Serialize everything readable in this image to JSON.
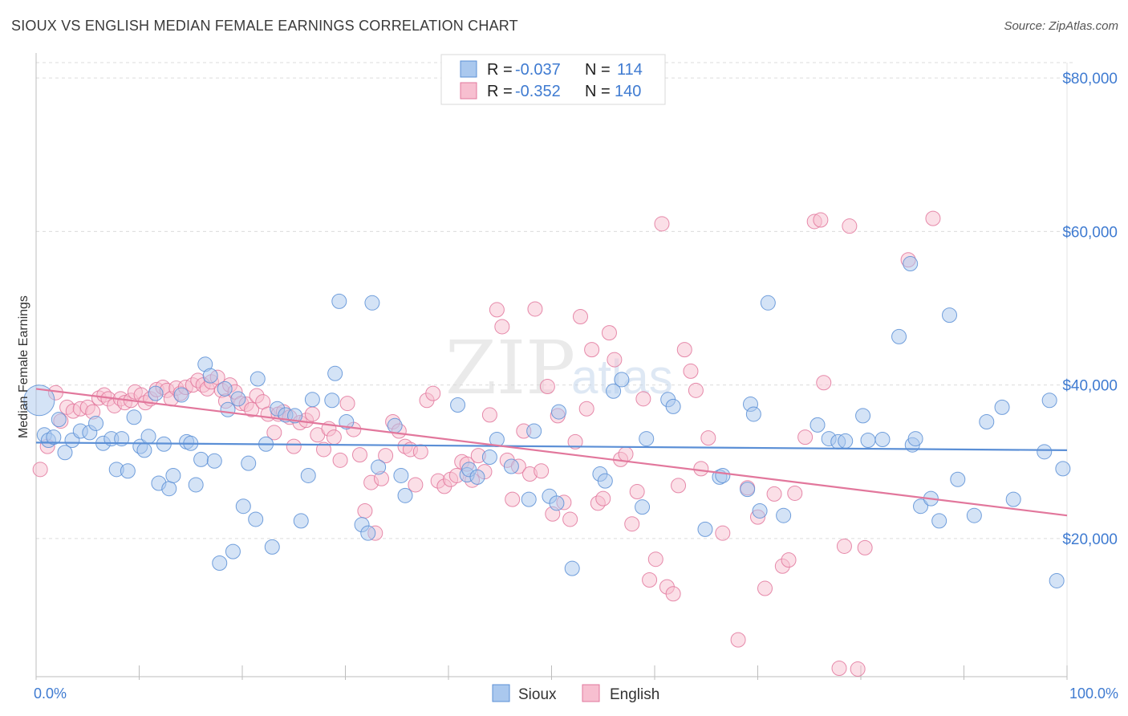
{
  "header": {
    "title": "SIOUX VS ENGLISH MEDIAN FEMALE EARNINGS CORRELATION CHART",
    "source": "Source: ZipAtlas.com"
  },
  "watermark": {
    "zip": "ZIP",
    "atlas": "atlas"
  },
  "legend_top": {
    "rows": [
      {
        "r_label": "R = ",
        "r_value": "-0.037",
        "n_label": "N = ",
        "n_value": "114",
        "color": "#aac8ee",
        "stroke": "#5b8fd6"
      },
      {
        "r_label": "R = ",
        "r_value": "-0.352",
        "n_label": "N = ",
        "n_value": "140",
        "color": "#f7bfd0",
        "stroke": "#e2779c"
      }
    ]
  },
  "legend_bottom": {
    "items": [
      {
        "label": "Sioux",
        "color": "#aac8ee"
      },
      {
        "label": "English",
        "color": "#f7bfd0"
      }
    ]
  },
  "chart_data": {
    "type": "scatter",
    "title": "SIOUX VS ENGLISH MEDIAN FEMALE EARNINGS CORRELATION CHART",
    "xlabel": "",
    "ylabel": "Median Female Earnings",
    "xlim": [
      0,
      100
    ],
    "ylim": [
      2000,
      82000
    ],
    "x_tick_labels": [
      "0.0%",
      "100.0%"
    ],
    "y_ticks": [
      20000,
      40000,
      60000,
      80000
    ],
    "y_tick_labels": [
      "$20,000",
      "$40,000",
      "$60,000",
      "$80,000"
    ],
    "grid": "horizontal dashed",
    "legend_position": "top-center",
    "series": [
      {
        "name": "Sioux",
        "color": "#5b8fd6",
        "fill": "#aac8ee",
        "trend": {
          "x": [
            0,
            100
          ],
          "y": [
            32500,
            31500
          ]
        },
        "points": [
          [
            0.3,
            38000
          ],
          [
            0.8,
            33500
          ],
          [
            1.2,
            32800
          ],
          [
            1.7,
            33200
          ],
          [
            2.2,
            35500
          ],
          [
            2.8,
            31200
          ],
          [
            3.5,
            32800
          ],
          [
            4.3,
            34000
          ],
          [
            5.2,
            33800
          ],
          [
            5.8,
            35000
          ],
          [
            6.5,
            32400
          ],
          [
            7.3,
            33000
          ],
          [
            7.8,
            29000
          ],
          [
            8.3,
            33000
          ],
          [
            8.9,
            28800
          ],
          [
            9.5,
            35800
          ],
          [
            10.1,
            32000
          ],
          [
            10.5,
            31500
          ],
          [
            10.9,
            33300
          ],
          [
            11.6,
            38900
          ],
          [
            11.9,
            27200
          ],
          [
            12.4,
            32300
          ],
          [
            12.9,
            26500
          ],
          [
            13.3,
            28200
          ],
          [
            14.1,
            38700
          ],
          [
            14.6,
            32600
          ],
          [
            15.0,
            32400
          ],
          [
            15.5,
            27000
          ],
          [
            16.0,
            30300
          ],
          [
            16.4,
            42700
          ],
          [
            16.9,
            41200
          ],
          [
            17.3,
            30100
          ],
          [
            17.8,
            16800
          ],
          [
            18.3,
            39500
          ],
          [
            18.6,
            36800
          ],
          [
            19.1,
            18300
          ],
          [
            19.6,
            38200
          ],
          [
            20.1,
            24200
          ],
          [
            20.6,
            29800
          ],
          [
            21.3,
            22500
          ],
          [
            21.5,
            40800
          ],
          [
            22.3,
            32300
          ],
          [
            22.9,
            18900
          ],
          [
            23.4,
            36900
          ],
          [
            24.2,
            36100
          ],
          [
            25.1,
            36000
          ],
          [
            25.7,
            22300
          ],
          [
            26.4,
            28200
          ],
          [
            26.8,
            38100
          ],
          [
            28.7,
            38000
          ],
          [
            29.0,
            41500
          ],
          [
            29.4,
            50900
          ],
          [
            30.1,
            35200
          ],
          [
            31.6,
            21800
          ],
          [
            32.2,
            20700
          ],
          [
            32.6,
            50700
          ],
          [
            33.2,
            29300
          ],
          [
            34.8,
            34700
          ],
          [
            35.4,
            28200
          ],
          [
            35.8,
            25600
          ],
          [
            40.9,
            37400
          ],
          [
            41.8,
            28300
          ],
          [
            42.0,
            29000
          ],
          [
            42.8,
            28000
          ],
          [
            44.0,
            30600
          ],
          [
            44.7,
            32900
          ],
          [
            46.1,
            29400
          ],
          [
            47.8,
            25100
          ],
          [
            48.3,
            34000
          ],
          [
            49.8,
            25500
          ],
          [
            50.5,
            24600
          ],
          [
            50.7,
            36500
          ],
          [
            52.0,
            16100
          ],
          [
            54.7,
            28400
          ],
          [
            55.2,
            27500
          ],
          [
            56.0,
            39200
          ],
          [
            56.8,
            40700
          ],
          [
            58.8,
            24100
          ],
          [
            59.2,
            33000
          ],
          [
            61.3,
            38100
          ],
          [
            61.8,
            37200
          ],
          [
            64.9,
            21200
          ],
          [
            66.3,
            28000
          ],
          [
            66.6,
            28200
          ],
          [
            69.0,
            26400
          ],
          [
            69.3,
            37500
          ],
          [
            69.6,
            36200
          ],
          [
            70.2,
            23600
          ],
          [
            71.0,
            50700
          ],
          [
            72.5,
            23000
          ],
          [
            75.8,
            34800
          ],
          [
            76.9,
            33000
          ],
          [
            77.8,
            32600
          ],
          [
            78.5,
            32700
          ],
          [
            80.2,
            36000
          ],
          [
            80.7,
            32800
          ],
          [
            82.1,
            32900
          ],
          [
            83.7,
            46300
          ],
          [
            84.8,
            55800
          ],
          [
            85.0,
            32200
          ],
          [
            85.3,
            33000
          ],
          [
            85.8,
            24200
          ],
          [
            86.8,
            25200
          ],
          [
            87.6,
            22300
          ],
          [
            88.6,
            49100
          ],
          [
            89.4,
            27700
          ],
          [
            91.0,
            23000
          ],
          [
            92.2,
            35200
          ],
          [
            93.7,
            37100
          ],
          [
            94.8,
            25100
          ],
          [
            97.8,
            31300
          ],
          [
            98.3,
            38000
          ],
          [
            99.0,
            14500
          ],
          [
            99.6,
            29100
          ]
        ]
      },
      {
        "name": "English",
        "color": "#e2779c",
        "fill": "#f7bfd0",
        "trend": {
          "x": [
            0,
            100
          ],
          "y": [
            39500,
            23000
          ]
        },
        "points": [
          [
            0.4,
            29000
          ],
          [
            1.1,
            32000
          ],
          [
            1.9,
            39000
          ],
          [
            2.4,
            35300
          ],
          [
            3.0,
            37100
          ],
          [
            3.6,
            36600
          ],
          [
            4.3,
            36900
          ],
          [
            5.0,
            37100
          ],
          [
            5.5,
            36500
          ],
          [
            6.1,
            38300
          ],
          [
            6.6,
            38700
          ],
          [
            7.0,
            38200
          ],
          [
            7.6,
            37300
          ],
          [
            8.2,
            38200
          ],
          [
            8.6,
            37700
          ],
          [
            9.2,
            38000
          ],
          [
            9.6,
            39100
          ],
          [
            10.2,
            38700
          ],
          [
            10.6,
            37700
          ],
          [
            11.1,
            38200
          ],
          [
            11.7,
            39400
          ],
          [
            12.3,
            39700
          ],
          [
            12.7,
            39300
          ],
          [
            13.1,
            38200
          ],
          [
            13.6,
            39600
          ],
          [
            14.0,
            38900
          ],
          [
            14.5,
            39700
          ],
          [
            15.2,
            40000
          ],
          [
            15.7,
            40600
          ],
          [
            16.2,
            40000
          ],
          [
            16.6,
            39500
          ],
          [
            17.0,
            40400
          ],
          [
            17.6,
            41000
          ],
          [
            18.0,
            39300
          ],
          [
            18.4,
            37900
          ],
          [
            18.8,
            40000
          ],
          [
            19.3,
            39100
          ],
          [
            19.9,
            37600
          ],
          [
            20.4,
            37500
          ],
          [
            20.9,
            36800
          ],
          [
            21.4,
            38600
          ],
          [
            22.0,
            37800
          ],
          [
            22.5,
            36200
          ],
          [
            23.1,
            33800
          ],
          [
            23.5,
            36200
          ],
          [
            24.0,
            36500
          ],
          [
            24.6,
            35800
          ],
          [
            25.0,
            32000
          ],
          [
            25.6,
            35100
          ],
          [
            26.2,
            35400
          ],
          [
            26.8,
            36200
          ],
          [
            27.3,
            33500
          ],
          [
            27.9,
            31600
          ],
          [
            28.4,
            34300
          ],
          [
            28.9,
            33200
          ],
          [
            29.5,
            30200
          ],
          [
            30.2,
            37600
          ],
          [
            30.8,
            34200
          ],
          [
            31.4,
            30900
          ],
          [
            31.9,
            23600
          ],
          [
            32.5,
            27300
          ],
          [
            32.9,
            20700
          ],
          [
            33.5,
            27800
          ],
          [
            33.9,
            30800
          ],
          [
            34.6,
            35200
          ],
          [
            35.2,
            34000
          ],
          [
            35.8,
            32000
          ],
          [
            36.3,
            31600
          ],
          [
            36.8,
            27000
          ],
          [
            37.3,
            31300
          ],
          [
            37.9,
            38000
          ],
          [
            38.5,
            38900
          ],
          [
            39.0,
            27500
          ],
          [
            39.6,
            26800
          ],
          [
            40.2,
            27700
          ],
          [
            40.8,
            28200
          ],
          [
            41.3,
            30000
          ],
          [
            41.8,
            29700
          ],
          [
            42.3,
            27600
          ],
          [
            42.9,
            30800
          ],
          [
            43.5,
            28700
          ],
          [
            44.0,
            36100
          ],
          [
            44.7,
            49800
          ],
          [
            45.2,
            47600
          ],
          [
            45.7,
            30200
          ],
          [
            46.2,
            25100
          ],
          [
            46.8,
            29400
          ],
          [
            47.3,
            34000
          ],
          [
            47.9,
            28400
          ],
          [
            48.4,
            49900
          ],
          [
            49.0,
            28800
          ],
          [
            49.6,
            39800
          ],
          [
            50.1,
            23200
          ],
          [
            50.6,
            36000
          ],
          [
            51.2,
            24700
          ],
          [
            51.8,
            22500
          ],
          [
            52.3,
            32600
          ],
          [
            52.8,
            48900
          ],
          [
            53.4,
            36900
          ],
          [
            53.9,
            44600
          ],
          [
            54.5,
            24600
          ],
          [
            55.0,
            25200
          ],
          [
            55.6,
            46800
          ],
          [
            56.1,
            43300
          ],
          [
            56.7,
            30300
          ],
          [
            57.2,
            31000
          ],
          [
            57.8,
            21900
          ],
          [
            58.3,
            26100
          ],
          [
            58.9,
            38200
          ],
          [
            59.5,
            14600
          ],
          [
            60.1,
            17300
          ],
          [
            60.7,
            61000
          ],
          [
            61.2,
            13700
          ],
          [
            61.8,
            12800
          ],
          [
            62.3,
            26900
          ],
          [
            62.9,
            44600
          ],
          [
            63.5,
            41800
          ],
          [
            64.0,
            39300
          ],
          [
            64.5,
            29100
          ],
          [
            65.2,
            33100
          ],
          [
            66.6,
            20700
          ],
          [
            68.1,
            6800
          ],
          [
            69.0,
            26600
          ],
          [
            70.0,
            22800
          ],
          [
            70.7,
            13500
          ],
          [
            71.6,
            25800
          ],
          [
            72.4,
            16400
          ],
          [
            73.0,
            17200
          ],
          [
            73.6,
            25900
          ],
          [
            74.6,
            33200
          ],
          [
            75.5,
            61300
          ],
          [
            76.1,
            61500
          ],
          [
            76.4,
            40300
          ],
          [
            77.9,
            3100
          ],
          [
            78.4,
            19000
          ],
          [
            78.9,
            60700
          ],
          [
            79.7,
            3000
          ],
          [
            80.4,
            18800
          ],
          [
            84.6,
            56300
          ],
          [
            87.0,
            61700
          ]
        ]
      }
    ]
  }
}
